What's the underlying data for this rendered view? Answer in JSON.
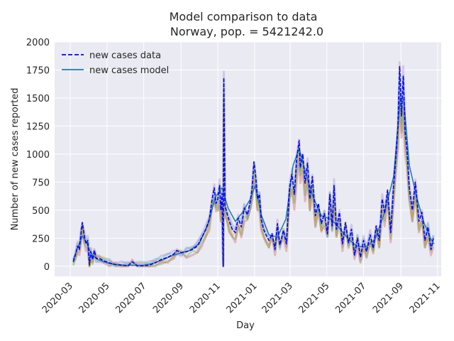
{
  "chart_data": {
    "type": "line",
    "title": "Model comparison to data",
    "subtitle": "Norway, pop. = 5421242.0",
    "xlabel": "Day",
    "ylabel": "Number of new cases reported",
    "x_tick_labels": [
      "2020-03",
      "2020-05",
      "2020-07",
      "2020-09",
      "2020-11",
      "2021-01",
      "2021-03",
      "2021-05",
      "2021-07",
      "2021-09",
      "2021-11"
    ],
    "x_ticks": [
      "2020-03-01",
      "2020-05-01",
      "2020-07-01",
      "2020-09-01",
      "2020-11-01",
      "2021-01-01",
      "2021-03-01",
      "2021-05-01",
      "2021-07-01",
      "2021-09-01",
      "2021-11-01"
    ],
    "xlim": [
      "2020-02-04",
      "2021-11-07"
    ],
    "ylim": [
      -90,
      2000
    ],
    "y_ticks": [
      0,
      250,
      500,
      750,
      1000,
      1250,
      1500,
      1750,
      2000
    ],
    "grid": true,
    "legend_position": "top-left",
    "background": "#eaeaf2",
    "series": [
      {
        "name": "new cases data",
        "style": "dashed",
        "color": "#0000ff",
        "points": [
          [
            "2020-03-06",
            40
          ],
          [
            "2020-03-10",
            110
          ],
          [
            "2020-03-13",
            180
          ],
          [
            "2020-03-16",
            150
          ],
          [
            "2020-03-19",
            300
          ],
          [
            "2020-03-21",
            390
          ],
          [
            "2020-03-24",
            280
          ],
          [
            "2020-03-27",
            200
          ],
          [
            "2020-03-30",
            230
          ],
          [
            "2020-04-02",
            10
          ],
          [
            "2020-04-04",
            130
          ],
          [
            "2020-04-07",
            60
          ],
          [
            "2020-04-10",
            140
          ],
          [
            "2020-04-13",
            70
          ],
          [
            "2020-04-18",
            70
          ],
          [
            "2020-04-25",
            50
          ],
          [
            "2020-05-05",
            30
          ],
          [
            "2020-05-15",
            15
          ],
          [
            "2020-05-25",
            10
          ],
          [
            "2020-06-05",
            5
          ],
          [
            "2020-06-12",
            40
          ],
          [
            "2020-06-20",
            5
          ],
          [
            "2020-07-01",
            5
          ],
          [
            "2020-07-10",
            10
          ],
          [
            "2020-07-20",
            30
          ],
          [
            "2020-07-30",
            60
          ],
          [
            "2020-08-10",
            80
          ],
          [
            "2020-08-20",
            110
          ],
          [
            "2020-08-25",
            140
          ],
          [
            "2020-09-01",
            120
          ],
          [
            "2020-09-10",
            130
          ],
          [
            "2020-09-20",
            150
          ],
          [
            "2020-09-28",
            180
          ],
          [
            "2020-10-05",
            250
          ],
          [
            "2020-10-12",
            330
          ],
          [
            "2020-10-18",
            420
          ],
          [
            "2020-10-22",
            580
          ],
          [
            "2020-10-26",
            700
          ],
          [
            "2020-10-29",
            560
          ],
          [
            "2020-11-01",
            600
          ],
          [
            "2020-11-04",
            720
          ],
          [
            "2020-11-06",
            500
          ],
          [
            "2020-11-08",
            650
          ],
          [
            "2020-11-10",
            0
          ],
          [
            "2020-11-11",
            1680
          ],
          [
            "2020-11-13",
            540
          ],
          [
            "2020-11-16",
            480
          ],
          [
            "2020-11-20",
            400
          ],
          [
            "2020-11-25",
            330
          ],
          [
            "2020-11-30",
            300
          ],
          [
            "2020-12-05",
            430
          ],
          [
            "2020-12-10",
            350
          ],
          [
            "2020-12-15",
            520
          ],
          [
            "2020-12-20",
            460
          ],
          [
            "2020-12-25",
            580
          ],
          [
            "2020-12-28",
            700
          ],
          [
            "2020-12-31",
            930
          ],
          [
            "2021-01-03",
            800
          ],
          [
            "2021-01-06",
            600
          ],
          [
            "2021-01-09",
            640
          ],
          [
            "2021-01-12",
            420
          ],
          [
            "2021-01-16",
            330
          ],
          [
            "2021-01-20",
            280
          ],
          [
            "2021-01-25",
            230
          ],
          [
            "2021-01-30",
            290
          ],
          [
            "2021-02-04",
            150
          ],
          [
            "2021-02-08",
            380
          ],
          [
            "2021-02-12",
            190
          ],
          [
            "2021-02-18",
            320
          ],
          [
            "2021-02-23",
            200
          ],
          [
            "2021-02-28",
            700
          ],
          [
            "2021-03-04",
            820
          ],
          [
            "2021-03-08",
            640
          ],
          [
            "2021-03-12",
            960
          ],
          [
            "2021-03-16",
            1120
          ],
          [
            "2021-03-18",
            880
          ],
          [
            "2021-03-22",
            1000
          ],
          [
            "2021-03-26",
            740
          ],
          [
            "2021-03-30",
            920
          ],
          [
            "2021-04-03",
            600
          ],
          [
            "2021-04-07",
            800
          ],
          [
            "2021-04-12",
            450
          ],
          [
            "2021-04-17",
            560
          ],
          [
            "2021-04-22",
            380
          ],
          [
            "2021-04-27",
            470
          ],
          [
            "2021-05-02",
            290
          ],
          [
            "2021-05-06",
            640
          ],
          [
            "2021-05-10",
            360
          ],
          [
            "2021-05-13",
            720
          ],
          [
            "2021-05-17",
            330
          ],
          [
            "2021-05-22",
            480
          ],
          [
            "2021-05-27",
            200
          ],
          [
            "2021-06-01",
            390
          ],
          [
            "2021-06-06",
            210
          ],
          [
            "2021-06-11",
            330
          ],
          [
            "2021-06-16",
            100
          ],
          [
            "2021-06-21",
            250
          ],
          [
            "2021-06-26",
            80
          ],
          [
            "2021-07-01",
            230
          ],
          [
            "2021-07-06",
            130
          ],
          [
            "2021-07-12",
            280
          ],
          [
            "2021-07-17",
            160
          ],
          [
            "2021-07-22",
            360
          ],
          [
            "2021-07-27",
            230
          ],
          [
            "2021-08-01",
            600
          ],
          [
            "2021-08-05",
            470
          ],
          [
            "2021-08-10",
            680
          ],
          [
            "2021-08-15",
            300
          ],
          [
            "2021-08-20",
            720
          ],
          [
            "2021-08-24",
            1000
          ],
          [
            "2021-08-27",
            1240
          ],
          [
            "2021-08-30",
            1780
          ],
          [
            "2021-09-02",
            1340
          ],
          [
            "2021-09-05",
            1700
          ],
          [
            "2021-09-08",
            1200
          ],
          [
            "2021-09-11",
            1050
          ],
          [
            "2021-09-15",
            700
          ],
          [
            "2021-09-20",
            500
          ],
          [
            "2021-09-25",
            750
          ],
          [
            "2021-10-01",
            400
          ],
          [
            "2021-10-06",
            480
          ],
          [
            "2021-10-11",
            230
          ],
          [
            "2021-10-16",
            350
          ],
          [
            "2021-10-21",
            150
          ],
          [
            "2021-10-25",
            250
          ]
        ]
      },
      {
        "name": "new cases model",
        "style": "solid",
        "color": "#1f77b4",
        "points": [
          [
            "2020-03-06",
            60
          ],
          [
            "2020-03-13",
            160
          ],
          [
            "2020-03-21",
            270
          ],
          [
            "2020-03-27",
            220
          ],
          [
            "2020-04-05",
            110
          ],
          [
            "2020-04-15",
            60
          ],
          [
            "2020-05-01",
            30
          ],
          [
            "2020-05-15",
            15
          ],
          [
            "2020-06-01",
            10
          ],
          [
            "2020-06-15",
            8
          ],
          [
            "2020-07-01",
            10
          ],
          [
            "2020-07-15",
            25
          ],
          [
            "2020-08-01",
            55
          ],
          [
            "2020-08-15",
            90
          ],
          [
            "2020-09-01",
            120
          ],
          [
            "2020-09-15",
            140
          ],
          [
            "2020-10-01",
            200
          ],
          [
            "2020-10-15",
            360
          ],
          [
            "2020-10-28",
            620
          ],
          [
            "2020-11-08",
            700
          ],
          [
            "2020-11-18",
            520
          ],
          [
            "2020-11-30",
            400
          ],
          [
            "2020-12-12",
            480
          ],
          [
            "2020-12-25",
            600
          ],
          [
            "2021-01-02",
            720
          ],
          [
            "2021-01-12",
            460
          ],
          [
            "2021-01-25",
            280
          ],
          [
            "2021-02-08",
            260
          ],
          [
            "2021-02-22",
            420
          ],
          [
            "2021-03-06",
            900
          ],
          [
            "2021-03-16",
            1050
          ],
          [
            "2021-03-26",
            850
          ],
          [
            "2021-04-08",
            620
          ],
          [
            "2021-04-22",
            450
          ],
          [
            "2021-05-08",
            420
          ],
          [
            "2021-05-22",
            340
          ],
          [
            "2021-06-06",
            240
          ],
          [
            "2021-06-20",
            180
          ],
          [
            "2021-07-05",
            170
          ],
          [
            "2021-07-20",
            240
          ],
          [
            "2021-08-05",
            480
          ],
          [
            "2021-08-20",
            800
          ],
          [
            "2021-08-31",
            1500
          ],
          [
            "2021-09-06",
            1480
          ],
          [
            "2021-09-15",
            900
          ],
          [
            "2021-09-28",
            600
          ],
          [
            "2021-10-10",
            380
          ],
          [
            "2021-10-20",
            250
          ],
          [
            "2021-10-26",
            200
          ]
        ]
      }
    ],
    "model_band_colors": [
      "#d62728",
      "#2ca02c",
      "#ff7f0e",
      "#17becf",
      "#9467bd"
    ]
  }
}
